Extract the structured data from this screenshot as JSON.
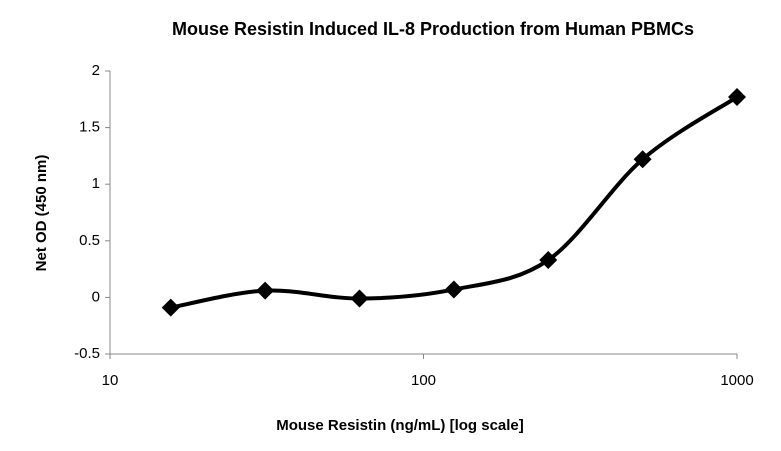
{
  "chart_data": {
    "type": "line",
    "title": "Mouse Resistin Induced IL-8 Production from Human PBMCs",
    "x_label": "Mouse Resistin (ng/mL) [log scale]",
    "y_label": "Net OD (450 nm)",
    "xscale": "log",
    "smooth": true,
    "grid": false,
    "x": [
      15.625,
      31.25,
      62.5,
      125,
      250,
      500,
      1000
    ],
    "series": [
      {
        "name": "Net OD",
        "color": "#000000",
        "values": [
          -0.09,
          0.06,
          -0.01,
          0.07,
          0.33,
          1.22,
          1.77
        ]
      }
    ],
    "xlim": [
      10,
      1000
    ],
    "xticks": [
      10,
      100,
      1000
    ],
    "ylim": [
      -0.5,
      2
    ],
    "yticks": [
      -0.5,
      0,
      0.5,
      1,
      1.5,
      2
    ]
  }
}
